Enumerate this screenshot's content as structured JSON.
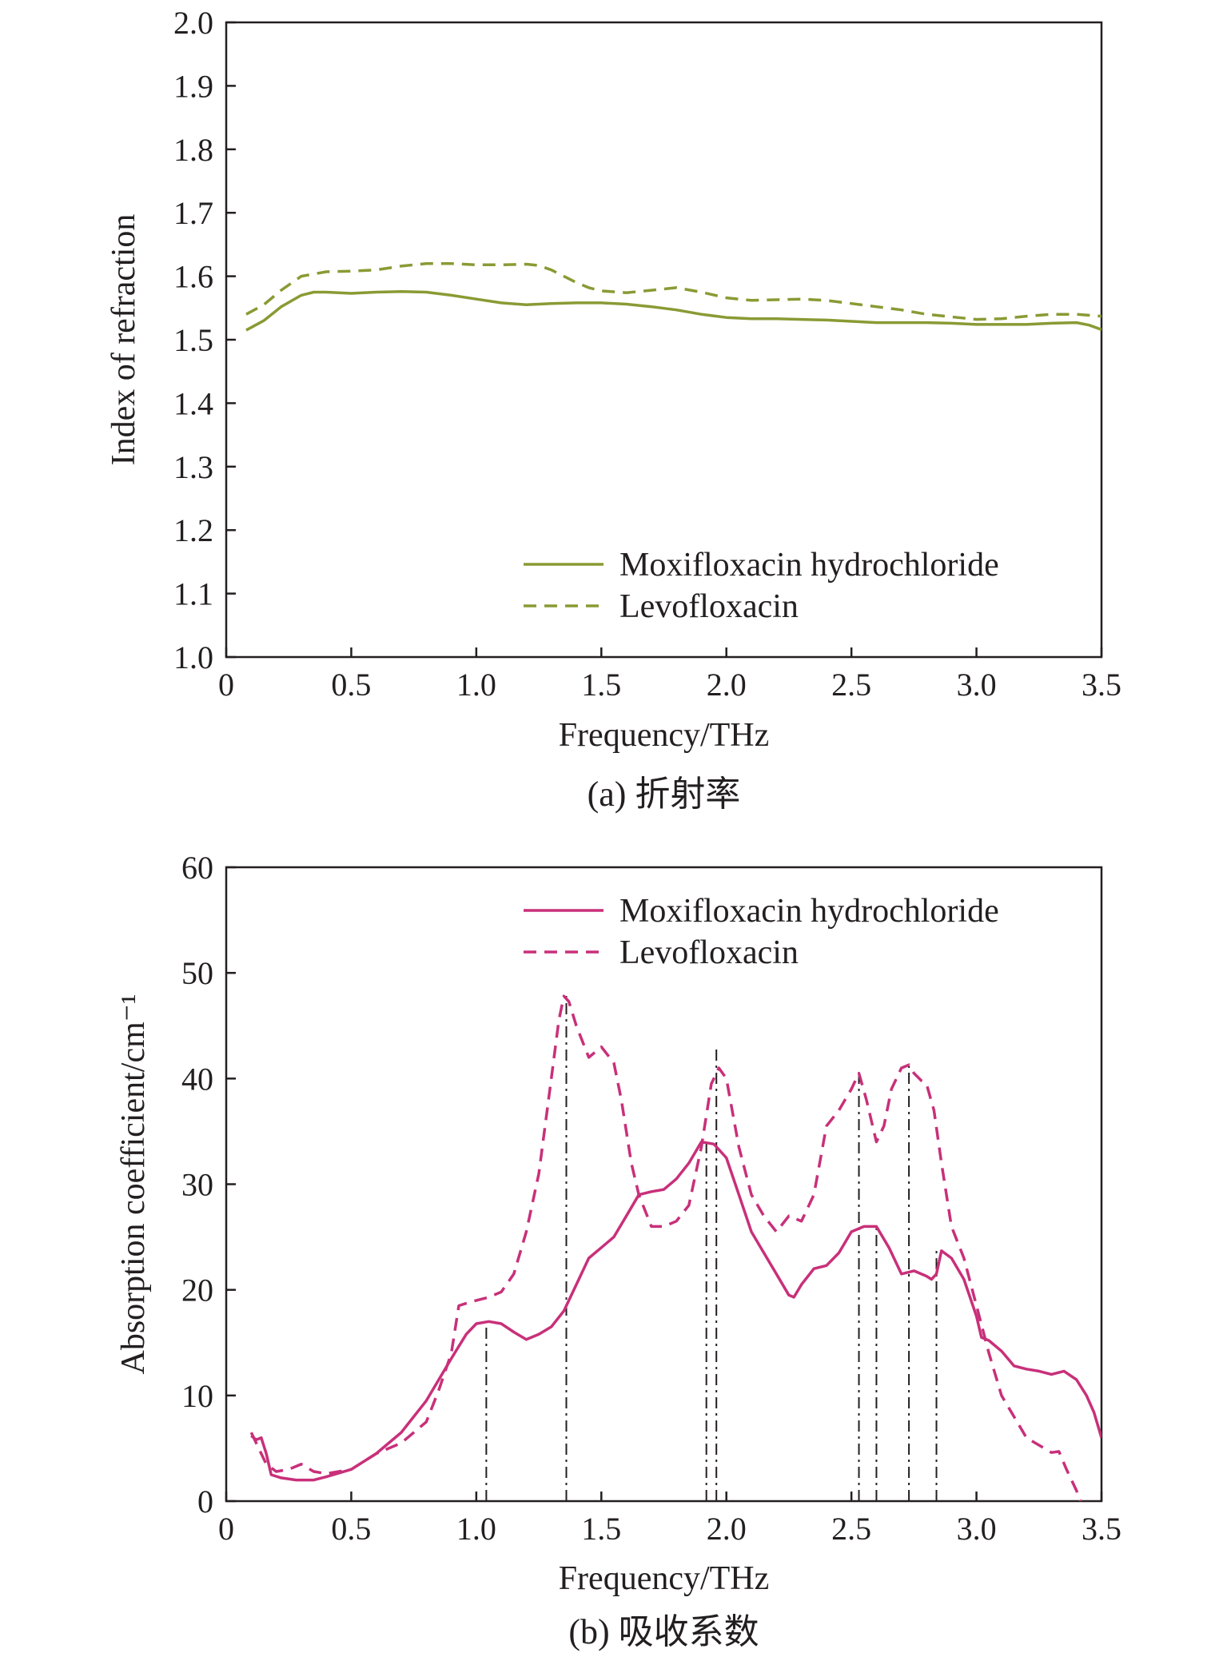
{
  "chart_data": [
    {
      "id": "a",
      "type": "line",
      "caption": "(a) 折射率",
      "xlabel": "Frequency/THz",
      "ylabel": "Index of refraction",
      "xlim": [
        0,
        3.5
      ],
      "ylim": [
        1.0,
        2.0
      ],
      "xticks": [
        "0",
        "0.5",
        "1.0",
        "1.5",
        "2.0",
        "2.5",
        "3.0",
        "3.5"
      ],
      "yticks": [
        "1.0",
        "1.1",
        "1.2",
        "1.3",
        "1.4",
        "1.5",
        "1.6",
        "1.7",
        "1.8",
        "1.9",
        "2.0"
      ],
      "grid": false,
      "legend_position": "bottom-right",
      "color": "#8a9a34",
      "series": [
        {
          "name": "Moxifloxacin hydrochloride",
          "style": "solid",
          "x": [
            0.08,
            0.15,
            0.22,
            0.3,
            0.35,
            0.4,
            0.5,
            0.6,
            0.7,
            0.8,
            0.9,
            1.0,
            1.1,
            1.2,
            1.3,
            1.4,
            1.5,
            1.6,
            1.7,
            1.8,
            1.9,
            2.0,
            2.1,
            2.2,
            2.3,
            2.4,
            2.5,
            2.6,
            2.7,
            2.8,
            2.9,
            3.0,
            3.1,
            3.2,
            3.3,
            3.4,
            3.45,
            3.5
          ],
          "y": [
            1.515,
            1.53,
            1.552,
            1.57,
            1.575,
            1.575,
            1.573,
            1.575,
            1.576,
            1.575,
            1.57,
            1.564,
            1.558,
            1.555,
            1.557,
            1.558,
            1.558,
            1.556,
            1.552,
            1.547,
            1.54,
            1.535,
            1.533,
            1.533,
            1.532,
            1.531,
            1.529,
            1.527,
            1.527,
            1.527,
            1.526,
            1.524,
            1.524,
            1.524,
            1.526,
            1.527,
            1.523,
            1.516
          ]
        },
        {
          "name": "Levofloxacin",
          "style": "dashed",
          "x": [
            0.08,
            0.15,
            0.22,
            0.3,
            0.4,
            0.5,
            0.6,
            0.7,
            0.8,
            0.9,
            1.0,
            1.1,
            1.2,
            1.25,
            1.3,
            1.35,
            1.4,
            1.45,
            1.5,
            1.6,
            1.7,
            1.8,
            1.9,
            2.0,
            2.1,
            2.2,
            2.3,
            2.4,
            2.5,
            2.6,
            2.7,
            2.8,
            2.9,
            3.0,
            3.1,
            3.2,
            3.3,
            3.4,
            3.5
          ],
          "y": [
            1.54,
            1.555,
            1.578,
            1.6,
            1.607,
            1.608,
            1.61,
            1.616,
            1.62,
            1.62,
            1.618,
            1.618,
            1.619,
            1.617,
            1.61,
            1.6,
            1.59,
            1.582,
            1.577,
            1.574,
            1.578,
            1.582,
            1.575,
            1.566,
            1.562,
            1.563,
            1.564,
            1.562,
            1.557,
            1.552,
            1.547,
            1.54,
            1.536,
            1.532,
            1.533,
            1.537,
            1.54,
            1.54,
            1.537
          ]
        }
      ]
    },
    {
      "id": "b",
      "type": "line",
      "caption": "(b) 吸收系数",
      "xlabel": "Frequency/THz",
      "ylabel": "Absorption coefficient/cm⁻¹",
      "xlim": [
        0,
        3.5
      ],
      "ylim": [
        0,
        60
      ],
      "xticks": [
        "0",
        "0.5",
        "1.0",
        "1.5",
        "2.0",
        "2.5",
        "3.0",
        "3.5"
      ],
      "yticks": [
        "0",
        "10",
        "20",
        "30",
        "40",
        "50",
        "60"
      ],
      "grid": false,
      "legend_position": "top-right",
      "color": "#c8307a",
      "series": [
        {
          "name": "Moxifloxacin hydrochloride",
          "style": "solid",
          "x": [
            0.1,
            0.12,
            0.14,
            0.16,
            0.18,
            0.22,
            0.28,
            0.35,
            0.4,
            0.5,
            0.6,
            0.7,
            0.8,
            0.9,
            0.96,
            1.0,
            1.05,
            1.1,
            1.15,
            1.2,
            1.25,
            1.3,
            1.35,
            1.4,
            1.45,
            1.5,
            1.55,
            1.6,
            1.65,
            1.7,
            1.75,
            1.8,
            1.85,
            1.9,
            1.95,
            2.0,
            2.05,
            2.1,
            2.15,
            2.2,
            2.25,
            2.27,
            2.3,
            2.35,
            2.4,
            2.45,
            2.5,
            2.55,
            2.6,
            2.65,
            2.7,
            2.75,
            2.8,
            2.82,
            2.84,
            2.86,
            2.9,
            2.95,
            3.0,
            3.02,
            3.05,
            3.1,
            3.15,
            3.2,
            3.25,
            3.3,
            3.35,
            3.4,
            3.44,
            3.47,
            3.5
          ],
          "y": [
            6.2,
            5.8,
            6.0,
            4.5,
            2.5,
            2.2,
            2.0,
            2.0,
            2.3,
            3.0,
            4.5,
            6.5,
            9.5,
            13.5,
            15.8,
            16.8,
            17.0,
            16.8,
            16.0,
            15.3,
            15.8,
            16.5,
            18.0,
            20.5,
            23.0,
            24.0,
            25.0,
            27.0,
            29.0,
            29.3,
            29.5,
            30.5,
            32.0,
            34.0,
            33.8,
            32.5,
            29.0,
            25.5,
            23.5,
            21.5,
            19.5,
            19.3,
            20.5,
            22.0,
            22.3,
            23.5,
            25.5,
            26.0,
            26.0,
            24.0,
            21.5,
            21.8,
            21.3,
            21.0,
            21.5,
            23.7,
            23.0,
            21.0,
            17.5,
            15.5,
            15.2,
            14.2,
            12.8,
            12.5,
            12.3,
            12.0,
            12.3,
            11.5,
            10.0,
            8.4,
            6.0
          ]
        },
        {
          "name": "Levofloxacin",
          "style": "dashed",
          "x": [
            0.1,
            0.12,
            0.14,
            0.16,
            0.2,
            0.25,
            0.3,
            0.35,
            0.4,
            0.5,
            0.6,
            0.7,
            0.8,
            0.85,
            0.9,
            0.93,
            0.97,
            1.0,
            1.05,
            1.1,
            1.15,
            1.2,
            1.25,
            1.3,
            1.33,
            1.35,
            1.37,
            1.4,
            1.45,
            1.5,
            1.55,
            1.58,
            1.62,
            1.65,
            1.7,
            1.75,
            1.8,
            1.85,
            1.9,
            1.94,
            1.97,
            2.0,
            2.05,
            2.1,
            2.15,
            2.2,
            2.25,
            2.3,
            2.35,
            2.4,
            2.45,
            2.5,
            2.53,
            2.56,
            2.6,
            2.63,
            2.66,
            2.7,
            2.73,
            2.75,
            2.78,
            2.8,
            2.83,
            2.86,
            2.9,
            2.95,
            3.0,
            3.05,
            3.1,
            3.2,
            3.3,
            3.33,
            3.36,
            3.4,
            3.45
          ],
          "y": [
            6.5,
            5.5,
            4.5,
            3.5,
            2.8,
            3.0,
            3.5,
            2.8,
            2.6,
            3.0,
            4.5,
            5.5,
            7.5,
            10.5,
            14.0,
            18.5,
            18.8,
            19.0,
            19.3,
            19.8,
            21.5,
            25.5,
            31.0,
            40.0,
            45.5,
            47.8,
            47.3,
            45.0,
            42.0,
            43.0,
            41.5,
            38.0,
            32.0,
            29.0,
            26.0,
            26.0,
            26.5,
            28.0,
            33.5,
            39.5,
            41.0,
            40.0,
            33.5,
            29.0,
            27.0,
            25.5,
            27.0,
            26.5,
            29.0,
            35.5,
            37.0,
            39.0,
            40.5,
            38.0,
            34.0,
            35.5,
            39.0,
            41.0,
            41.3,
            40.5,
            39.8,
            39.5,
            37.0,
            32.0,
            26.0,
            23.0,
            18.5,
            14.0,
            10.0,
            6.0,
            4.6,
            4.7,
            3.0,
            1.0,
            -2.0
          ]
        }
      ],
      "reference_lines": [
        {
          "x": 1.04,
          "y_top": 17.0
        },
        {
          "x": 1.36,
          "y_top": 48.0
        },
        {
          "x": 1.92,
          "y_top": 34.0
        },
        {
          "x": 1.96,
          "y_top": 43.0
        },
        {
          "x": 2.53,
          "y_top": 41.0
        },
        {
          "x": 2.6,
          "y_top": 26.0
        },
        {
          "x": 2.73,
          "y_top": 41.5
        },
        {
          "x": 2.84,
          "y_top": 23.7
        }
      ]
    }
  ]
}
